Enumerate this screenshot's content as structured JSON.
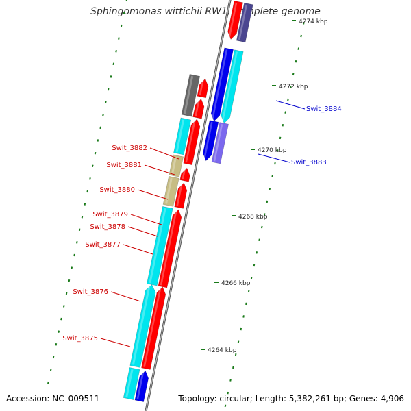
{
  "title": "Sphingomonas wittichii RW1, complete genome",
  "accession": "Accession: NC_009511",
  "summary": "Topology: circular; Length: 5,382,261 bp; Genes: 4,906",
  "colors": {
    "forward_gene": "#ff0000",
    "reverse_gene": "#0000ee",
    "cds_cyan": "#00e5ee",
    "cds_khaki": "#c7bd84",
    "cds_gray": "#666666",
    "cds_violet": "#7b68ee",
    "backbone": "#888888",
    "tick": "#1a7a1a",
    "forward_label": "#cc0000",
    "reverse_label": "#0000cc"
  },
  "ticks": [
    "4264 kbp",
    "4266 kbp",
    "4268 kbp",
    "4270 kbp",
    "4272 kbp",
    "4274 kbp"
  ],
  "genes": [
    {
      "id": "Swit_3875",
      "strand": "forward"
    },
    {
      "id": "Swit_3876",
      "strand": "forward"
    },
    {
      "id": "Swit_3877",
      "strand": "forward"
    },
    {
      "id": "Swit_3878",
      "strand": "forward"
    },
    {
      "id": "Swit_3879",
      "strand": "forward"
    },
    {
      "id": "Swit_3880",
      "strand": "forward"
    },
    {
      "id": "Swit_3881",
      "strand": "forward"
    },
    {
      "id": "Swit_3882",
      "strand": "forward"
    },
    {
      "id": "Swit_3883",
      "strand": "reverse"
    },
    {
      "id": "Swit_3884",
      "strand": "reverse"
    }
  ]
}
